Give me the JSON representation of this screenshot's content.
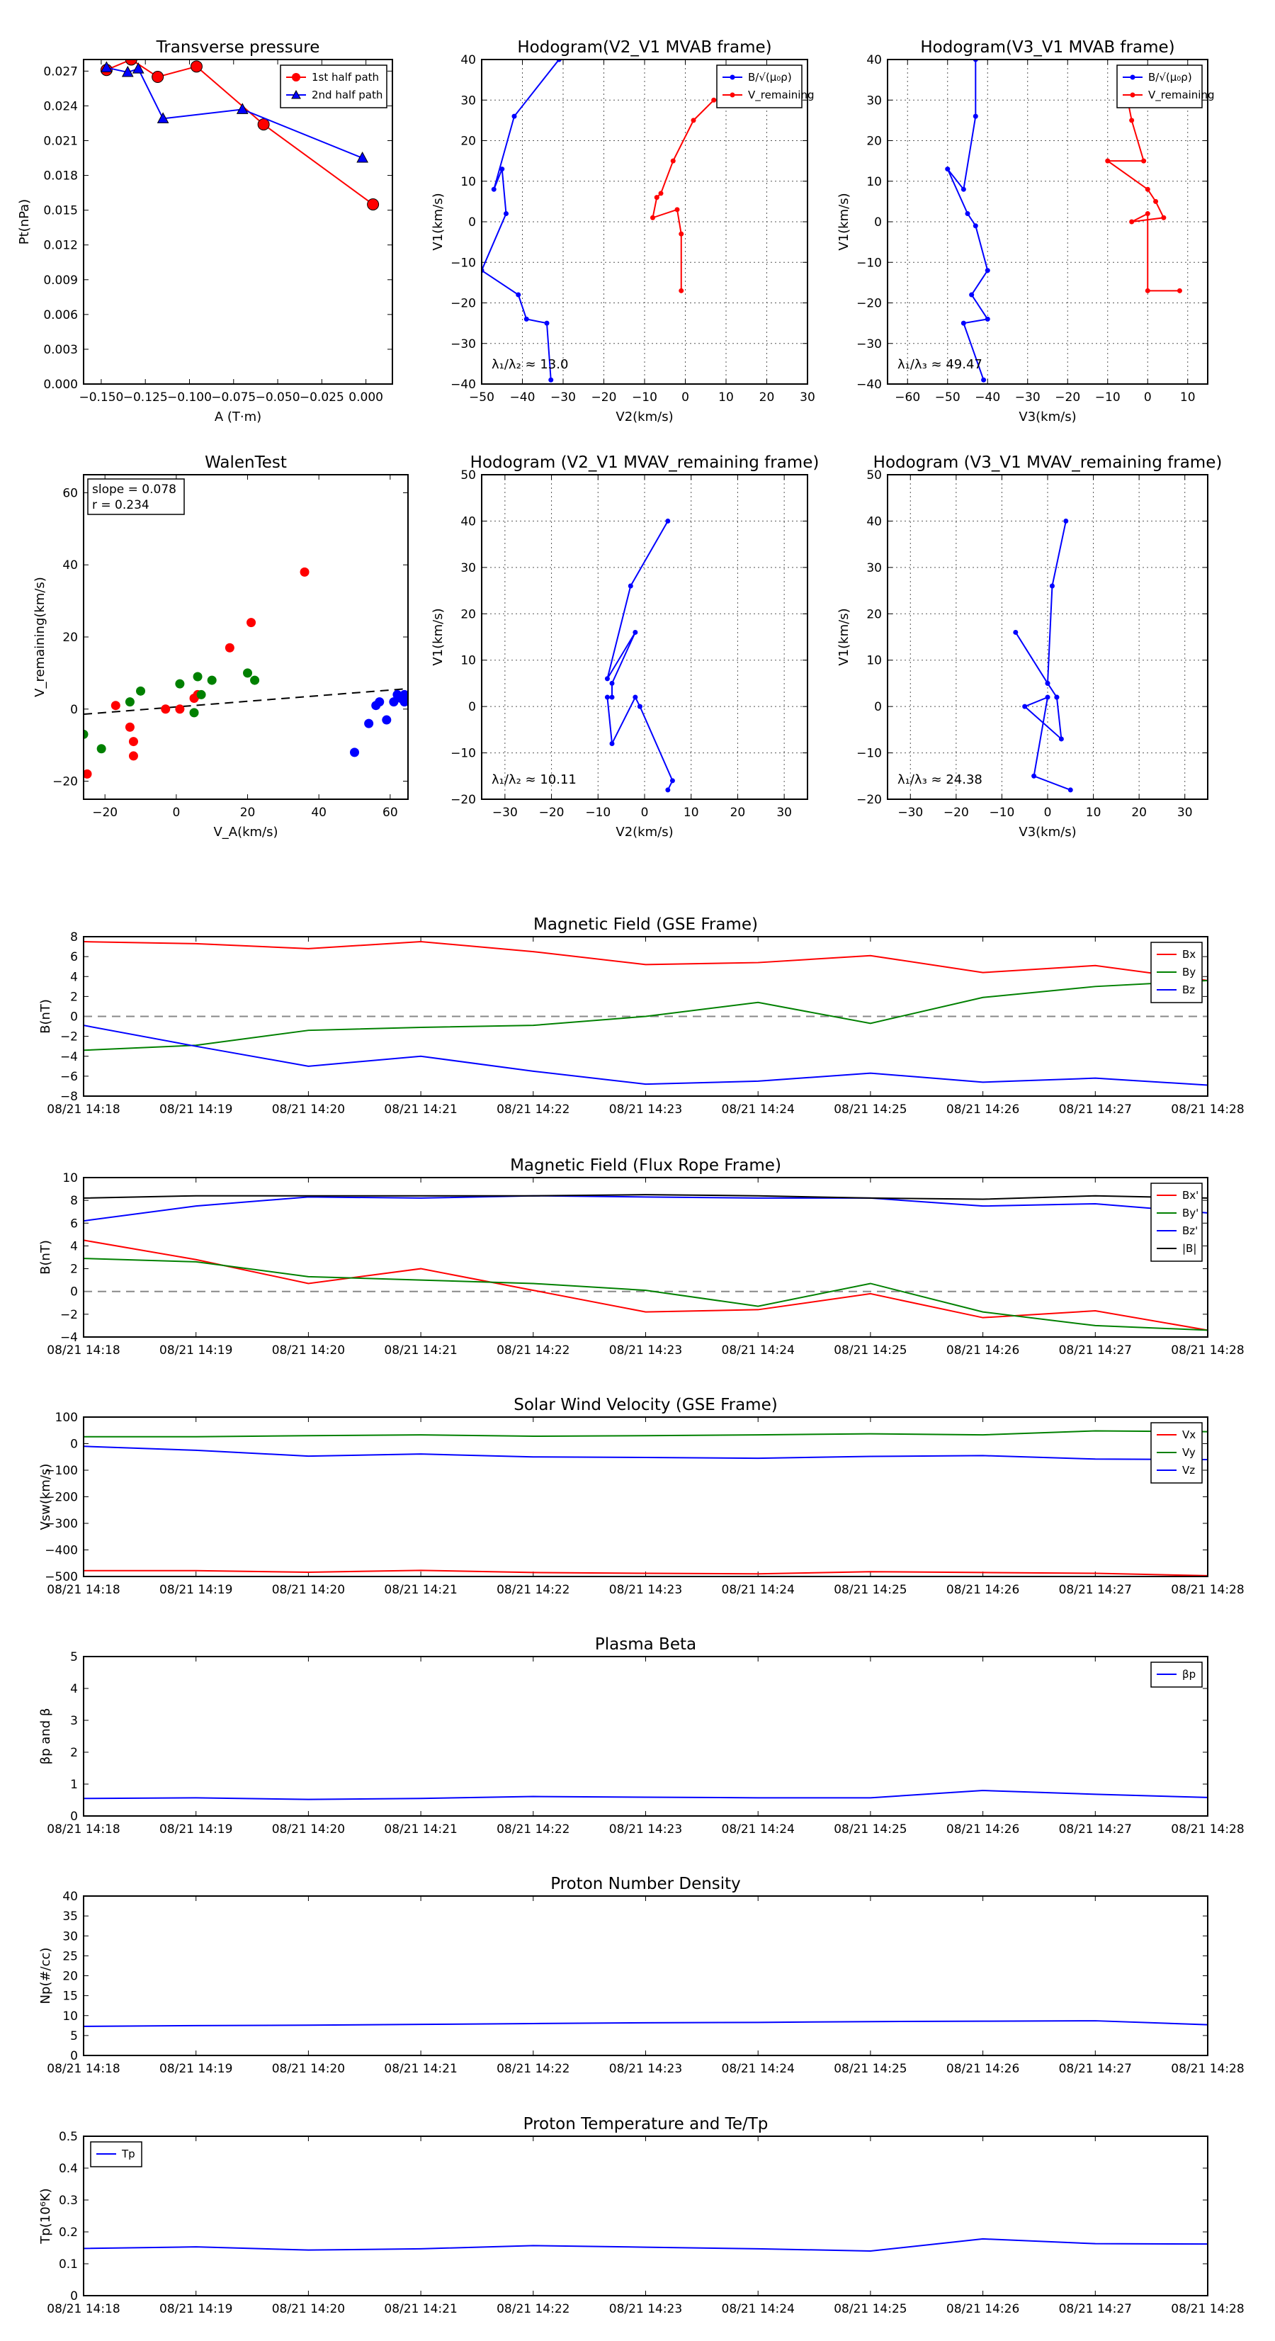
{
  "chart_data": [
    {
      "id": "pt",
      "type": "line",
      "title": "Transverse pressure",
      "xlabel": "A (T·m)",
      "ylabel": "Pt(nPa)",
      "xlim": [
        -0.16,
        0.015
      ],
      "ylim": [
        0.0,
        0.028
      ],
      "xticks": [
        -0.15,
        -0.125,
        -0.1,
        -0.075,
        -0.05,
        -0.025,
        0.0
      ],
      "xtick_labels": [
        "−0.150",
        "−0.125",
        "−0.100",
        "−0.075",
        "−0.050",
        "−0.025",
        "0.000"
      ],
      "yticks": [
        0.0,
        0.003,
        0.006,
        0.009,
        0.012,
        0.015,
        0.018,
        0.021,
        0.024,
        0.027
      ],
      "ytick_labels": [
        "0.000",
        "0.003",
        "0.006",
        "0.009",
        "0.012",
        "0.015",
        "0.018",
        "0.021",
        "0.024",
        "0.027"
      ],
      "grid": false,
      "legend": "top-right",
      "series": [
        {
          "name": "1st half path",
          "color": "#ff0000",
          "marker": "circle",
          "x": [
            -0.147,
            -0.133,
            -0.118,
            -0.096,
            -0.058,
            0.004
          ],
          "y": [
            0.0271,
            0.028,
            0.0265,
            0.0274,
            0.0224,
            0.0155
          ]
        },
        {
          "name": "2nd half path",
          "color": "#0000ff",
          "marker": "triangle",
          "x": [
            -0.147,
            -0.135,
            -0.129,
            -0.115,
            -0.07,
            -0.002
          ],
          "y": [
            0.0273,
            0.0269,
            0.0272,
            0.0229,
            0.0237,
            0.0195
          ]
        }
      ]
    },
    {
      "id": "h1",
      "type": "line",
      "title": "Hodogram(V2_V1 MVAB frame)",
      "xlabel": "V2(km/s)",
      "ylabel": "V1(km/s)",
      "xlim": [
        -50,
        30
      ],
      "ylim": [
        -40,
        40
      ],
      "xticks": [
        -50,
        -40,
        -30,
        -20,
        -10,
        0,
        10,
        20,
        30
      ],
      "yticks": [
        -40,
        -30,
        -20,
        -10,
        0,
        10,
        20,
        30,
        40
      ],
      "grid": true,
      "legend": "top-right",
      "annotation": "λ₁/λ₂ ≈ 13.0",
      "series": [
        {
          "name": "B/√(μ₀ρ)",
          "color": "#0000ff",
          "x": [
            -31,
            -42,
            -47,
            -45,
            -44,
            -50,
            -41,
            -39,
            -34,
            -33
          ],
          "y": [
            40,
            26,
            8,
            13,
            2,
            -12,
            -18,
            -24,
            -25,
            -39
          ]
        },
        {
          "name": "V_remaining",
          "color": "#ff0000",
          "x": [
            7,
            2,
            -3,
            -6,
            -7,
            -8,
            -2,
            -1,
            -1
          ],
          "y": [
            30,
            25,
            15,
            7,
            6,
            1,
            3,
            -3,
            -17
          ]
        }
      ]
    },
    {
      "id": "h2",
      "type": "line",
      "title": "Hodogram(V3_V1 MVAB frame)",
      "xlabel": "V3(km/s)",
      "ylabel": "V1(km/s)",
      "xlim": [
        -65,
        15
      ],
      "ylim": [
        -40,
        40
      ],
      "xticks": [
        -60,
        -50,
        -40,
        -30,
        -20,
        -10,
        0,
        10
      ],
      "yticks": [
        -40,
        -30,
        -20,
        -10,
        0,
        10,
        20,
        30,
        40
      ],
      "grid": true,
      "legend": "top-right",
      "annotation": "λ₁/λ₃ ≈ 49.47",
      "series": [
        {
          "name": "B/√(μ₀ρ)",
          "color": "#0000ff",
          "x": [
            -43,
            -43,
            -46,
            -50,
            -45,
            -43,
            -40,
            -44,
            -40,
            -46,
            -41
          ],
          "y": [
            40,
            26,
            8,
            13,
            2,
            -1,
            -12,
            -18,
            -24,
            -25,
            -39
          ]
        },
        {
          "name": "V_remaining",
          "color": "#ff0000",
          "x": [
            -5,
            -4,
            -1,
            -10,
            0,
            2,
            4,
            -4,
            0,
            0,
            8
          ],
          "y": [
            30,
            25,
            15,
            15,
            8,
            5,
            1,
            0,
            2,
            -17,
            -17
          ]
        }
      ]
    },
    {
      "id": "walen",
      "type": "scatter",
      "title": "WalenTest",
      "xlabel": "V_A(km/s)",
      "ylabel": "V_remaining(km/s)",
      "xlim": [
        -26,
        65
      ],
      "ylim": [
        -25,
        65
      ],
      "xticks": [
        -20,
        0,
        20,
        40,
        60
      ],
      "yticks": [
        -20,
        0,
        20,
        40,
        60
      ],
      "grid": false,
      "annotation_lines": [
        "slope = 0.078",
        "r = 0.234"
      ],
      "fit_line": {
        "slope": 0.078,
        "intercept": 0.6,
        "style": "dashed",
        "color": "#000000"
      },
      "series": [
        {
          "color": "#ff0000",
          "x": [
            -25,
            -17,
            -13,
            -12,
            -12,
            -3,
            1,
            5,
            6,
            15,
            21,
            36
          ],
          "y": [
            -18,
            1,
            -5,
            -9,
            -13,
            0,
            0,
            3,
            4,
            17,
            24,
            38
          ]
        },
        {
          "color": "#008000",
          "x": [
            -26,
            -21,
            -13,
            -10,
            1,
            5,
            6,
            7,
            10,
            20,
            22
          ],
          "y": [
            -7,
            -11,
            2,
            5,
            7,
            -1,
            9,
            4,
            8,
            10,
            8
          ]
        },
        {
          "color": "#0000ff",
          "x": [
            50,
            54,
            56,
            57,
            59,
            61,
            62,
            63,
            64,
            64,
            65
          ],
          "y": [
            -12,
            -4,
            1,
            2,
            -3,
            2,
            4,
            3,
            4,
            2,
            3
          ]
        }
      ]
    },
    {
      "id": "h3",
      "type": "line",
      "title": "Hodogram (V2_V1 MVAV_remaining frame)",
      "xlabel": "V2(km/s)",
      "ylabel": "V1(km/s)",
      "xlim": [
        -35,
        35
      ],
      "ylim": [
        -20,
        50
      ],
      "xticks": [
        -30,
        -20,
        -10,
        0,
        10,
        20,
        30
      ],
      "yticks": [
        -20,
        -10,
        0,
        10,
        20,
        30,
        40,
        50
      ],
      "grid": true,
      "annotation": "λ₁/λ₂ ≈ 10.11",
      "series": [
        {
          "color": "#0000ff",
          "x": [
            5,
            -3,
            -8,
            -2,
            -7,
            -7,
            -8,
            -7,
            -2,
            -1,
            6,
            5
          ],
          "y": [
            40,
            26,
            6,
            16,
            5,
            2,
            2,
            -8,
            2,
            0,
            -16,
            -18
          ]
        }
      ]
    },
    {
      "id": "h4",
      "type": "line",
      "title": "Hodogram (V3_V1 MVAV_remaining frame)",
      "xlabel": "V3(km/s)",
      "ylabel": "V1(km/s)",
      "xlim": [
        -35,
        35
      ],
      "ylim": [
        -20,
        50
      ],
      "xticks": [
        -30,
        -20,
        -10,
        0,
        10,
        20,
        30
      ],
      "yticks": [
        -20,
        -10,
        0,
        10,
        20,
        30,
        40,
        50
      ],
      "grid": true,
      "annotation": "λ₁/λ₃ ≈ 24.38",
      "series": [
        {
          "color": "#0000ff",
          "x": [
            4,
            1,
            0,
            -7,
            0,
            2,
            2,
            3,
            -5,
            0,
            -3,
            5
          ],
          "y": [
            40,
            26,
            5,
            16,
            5,
            2,
            2,
            -7,
            0,
            2,
            -15,
            -18
          ]
        }
      ]
    },
    {
      "id": "bgse",
      "type": "line",
      "title": "Magnetic Field (GSE Frame)",
      "xlabel": "",
      "ylabel": "B(nT)",
      "categories": [
        "08/21 14:18",
        "08/21 14:19",
        "08/21 14:20",
        "08/21 14:21",
        "08/21 14:22",
        "08/21 14:23",
        "08/21 14:24",
        "08/21 14:25",
        "08/21 14:26",
        "08/21 14:27",
        "08/21 14:28"
      ],
      "ylim": [
        -8,
        8
      ],
      "yticks": [
        -8,
        -6,
        -4,
        -2,
        0,
        2,
        4,
        6,
        8
      ],
      "zero_line": true,
      "legend": "top-right",
      "series": [
        {
          "name": "Bx",
          "color": "#ff0000",
          "values": [
            7.5,
            7.3,
            6.8,
            7.5,
            6.5,
            5.2,
            5.4,
            6.1,
            4.4,
            5.1,
            3.6
          ]
        },
        {
          "name": "By",
          "color": "#008000",
          "values": [
            -3.4,
            -2.9,
            -1.4,
            -1.1,
            -0.9,
            0.0,
            1.4,
            -0.7,
            1.9,
            3.0,
            3.6
          ]
        },
        {
          "name": "Bz",
          "color": "#0000ff",
          "values": [
            -0.9,
            -3.0,
            -5.0,
            -4.0,
            -5.5,
            -6.8,
            -6.5,
            -5.7,
            -6.6,
            -6.2,
            -6.9
          ]
        }
      ]
    },
    {
      "id": "bfr",
      "type": "line",
      "title": "Magnetic Field (Flux Rope Frame)",
      "xlabel": "",
      "ylabel": "B(nT)",
      "categories": [
        "08/21 14:18",
        "08/21 14:19",
        "08/21 14:20",
        "08/21 14:21",
        "08/21 14:22",
        "08/21 14:23",
        "08/21 14:24",
        "08/21 14:25",
        "08/21 14:26",
        "08/21 14:27",
        "08/21 14:28"
      ],
      "ylim": [
        -4,
        10
      ],
      "yticks": [
        -4,
        -2,
        0,
        2,
        4,
        6,
        8,
        10
      ],
      "zero_line": true,
      "legend": "top-right",
      "series": [
        {
          "name": "Bx'",
          "color": "#ff0000",
          "values": [
            4.5,
            2.8,
            0.7,
            2.0,
            0.1,
            -1.8,
            -1.6,
            -0.2,
            -2.3,
            -1.7,
            -3.4
          ]
        },
        {
          "name": "By'",
          "color": "#008000",
          "values": [
            2.9,
            2.6,
            1.3,
            1.0,
            0.7,
            0.1,
            -1.3,
            0.7,
            -1.8,
            -3.0,
            -3.4
          ]
        },
        {
          "name": "Bz'",
          "color": "#0000ff",
          "values": [
            6.2,
            7.5,
            8.3,
            8.2,
            8.4,
            8.3,
            8.2,
            8.2,
            7.5,
            7.7,
            6.9
          ]
        },
        {
          "name": "|B|",
          "color": "#000000",
          "values": [
            8.2,
            8.4,
            8.4,
            8.4,
            8.4,
            8.5,
            8.4,
            8.2,
            8.1,
            8.4,
            8.2
          ]
        }
      ]
    },
    {
      "id": "vsw",
      "type": "line",
      "title": "Solar Wind Velocity (GSE Frame)",
      "xlabel": "",
      "ylabel": "Vsw(km/s)",
      "categories": [
        "08/21 14:18",
        "08/21 14:19",
        "08/21 14:20",
        "08/21 14:21",
        "08/21 14:22",
        "08/21 14:23",
        "08/21 14:24",
        "08/21 14:25",
        "08/21 14:26",
        "08/21 14:27",
        "08/21 14:28"
      ],
      "ylim": [
        -500,
        100
      ],
      "yticks": [
        -500,
        -400,
        -300,
        -200,
        -100,
        0,
        100
      ],
      "legend": "top-right",
      "series": [
        {
          "name": "Vx",
          "color": "#ff0000",
          "values": [
            -478,
            -478,
            -484,
            -477,
            -485,
            -488,
            -490,
            -482,
            -485,
            -488,
            -497
          ]
        },
        {
          "name": "Vy",
          "color": "#008000",
          "values": [
            26,
            26,
            30,
            33,
            28,
            30,
            33,
            37,
            33,
            48,
            45
          ]
        },
        {
          "name": "Vz",
          "color": "#0000ff",
          "values": [
            -10,
            -25,
            -47,
            -39,
            -50,
            -52,
            -55,
            -48,
            -45,
            -58,
            -60
          ]
        }
      ]
    },
    {
      "id": "beta",
      "type": "line",
      "title": "Plasma Beta",
      "xlabel": "",
      "ylabel": "βp and β",
      "categories": [
        "08/21 14:18",
        "08/21 14:19",
        "08/21 14:20",
        "08/21 14:21",
        "08/21 14:22",
        "08/21 14:23",
        "08/21 14:24",
        "08/21 14:25",
        "08/21 14:26",
        "08/21 14:27",
        "08/21 14:28"
      ],
      "ylim": [
        0,
        5
      ],
      "yticks": [
        0,
        1,
        2,
        3,
        4,
        5
      ],
      "legend": "top-right",
      "series": [
        {
          "name": "βp",
          "color": "#0000ff",
          "values": [
            0.55,
            0.57,
            0.52,
            0.55,
            0.61,
            0.59,
            0.57,
            0.57,
            0.8,
            0.68,
            0.58
          ]
        }
      ]
    },
    {
      "id": "np",
      "type": "line",
      "title": "Proton Number Density",
      "xlabel": "",
      "ylabel": "Np(#/cc)",
      "categories": [
        "08/21 14:18",
        "08/21 14:19",
        "08/21 14:20",
        "08/21 14:21",
        "08/21 14:22",
        "08/21 14:23",
        "08/21 14:24",
        "08/21 14:25",
        "08/21 14:26",
        "08/21 14:27",
        "08/21 14:28"
      ],
      "ylim": [
        0,
        40
      ],
      "yticks": [
        0,
        5,
        10,
        15,
        20,
        25,
        30,
        35,
        40
      ],
      "series": [
        {
          "color": "#0000ff",
          "values": [
            7.3,
            7.5,
            7.6,
            7.8,
            8.0,
            8.2,
            8.3,
            8.5,
            8.6,
            8.7,
            7.7
          ]
        }
      ]
    },
    {
      "id": "tp",
      "type": "line",
      "title": "Proton Temperature and Te/Tp",
      "xlabel": "",
      "ylabel": "Tp(10⁶K)",
      "categories": [
        "08/21 14:18",
        "08/21 14:19",
        "08/21 14:20",
        "08/21 14:21",
        "08/21 14:22",
        "08/21 14:23",
        "08/21 14:24",
        "08/21 14:25",
        "08/21 14:26",
        "08/21 14:27",
        "08/21 14:28"
      ],
      "ylim": [
        0,
        0.5
      ],
      "yticks": [
        0.0,
        0.1,
        0.2,
        0.3,
        0.4,
        0.5
      ],
      "legend": "top-left",
      "series": [
        {
          "name": "Tp",
          "color": "#0000ff",
          "values": [
            0.148,
            0.153,
            0.143,
            0.147,
            0.157,
            0.152,
            0.147,
            0.14,
            0.178,
            0.163,
            0.162
          ]
        }
      ]
    }
  ]
}
